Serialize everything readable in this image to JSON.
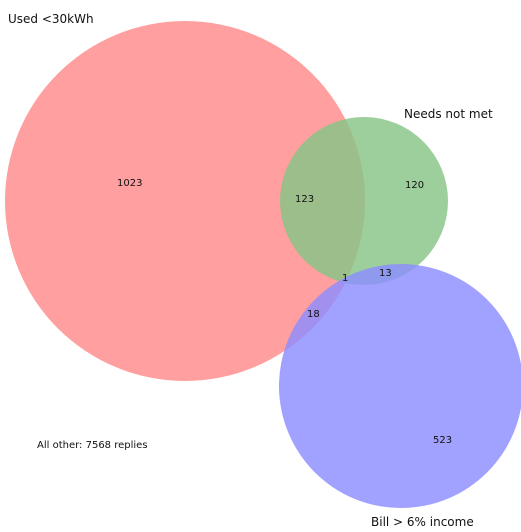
{
  "diagram": {
    "type": "venn3",
    "sets": [
      {
        "name": "Used <30kWh",
        "color": "#ff8a8a"
      },
      {
        "name": "Needs not met",
        "color": "#86c486"
      },
      {
        "name": "Bill > 6% income",
        "color": "#8c8cff"
      }
    ],
    "regions": {
      "used_only": "1023",
      "needs_only": "120",
      "bill_only": "523",
      "used_and_needs": "123",
      "used_and_bill": "18",
      "needs_and_bill": "13",
      "all_three": "1"
    },
    "other_note": "All other: 7568 replies"
  }
}
